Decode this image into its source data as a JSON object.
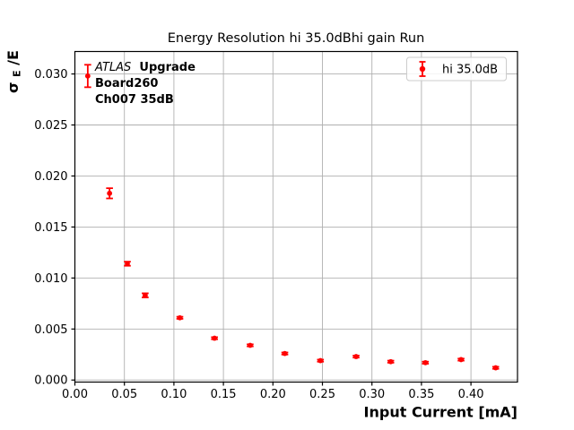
{
  "figure": {
    "background": "#ffffff",
    "accent_color": "#ff0000",
    "grid_color": "#b0b0b0",
    "legend_border_color": "#cccccc"
  },
  "annotation": {
    "atlas": "ATLAS",
    "upgrade": "Upgrade",
    "line2": "Board260",
    "line3": "Ch007 35dB"
  },
  "legend": {
    "entries": [
      {
        "label": "hi 35.0dB",
        "marker": "errorbar-point",
        "marker_color": "#ff0000"
      }
    ],
    "position": "upper right"
  },
  "chart_data": {
    "type": "scatter",
    "title": "Energy Resolution hi 35.0dBhi gain Run",
    "xlabel": "Input Current [mA]",
    "ylabel": "σE/E",
    "ylabel_parts": {
      "sigma": "σ",
      "sub": "E",
      "rest": "/E"
    },
    "grid": true,
    "grid_color": "#b0b0b0",
    "legend_position": "upper right",
    "xlim": [
      0,
      0.447
    ],
    "ylim": [
      -0.0002,
      0.0322
    ],
    "xticks": [
      0.0,
      0.05,
      0.1,
      0.15,
      0.2,
      0.25,
      0.3,
      0.35,
      0.4
    ],
    "xtick_labels": [
      "0.00",
      "0.05",
      "0.10",
      "0.15",
      "0.20",
      "0.25",
      "0.30",
      "0.35",
      "0.40"
    ],
    "yticks": [
      0.0,
      0.005,
      0.01,
      0.015,
      0.02,
      0.025,
      0.03
    ],
    "ytick_labels": [
      "0.000",
      "0.005",
      "0.010",
      "0.015",
      "0.020",
      "0.025",
      "0.030"
    ],
    "series": [
      {
        "name": "hi 35.0dB",
        "color": "#ff0000",
        "marker": "o",
        "x": [
          0.013,
          0.035,
          0.053,
          0.071,
          0.106,
          0.141,
          0.177,
          0.212,
          0.248,
          0.284,
          0.319,
          0.354,
          0.39,
          0.425
        ],
        "y": [
          0.0298,
          0.0183,
          0.0114,
          0.0083,
          0.0061,
          0.0041,
          0.0034,
          0.0026,
          0.0019,
          0.0023,
          0.0018,
          0.0017,
          0.002,
          0.0012
        ],
        "yerr": [
          0.0011,
          0.0005,
          0.0002,
          0.0002,
          0.0001,
          0.0001,
          0.0001,
          0.0001,
          0.0001,
          0.0001,
          0.0001,
          0.0001,
          0.0001,
          0.0001
        ]
      }
    ]
  }
}
